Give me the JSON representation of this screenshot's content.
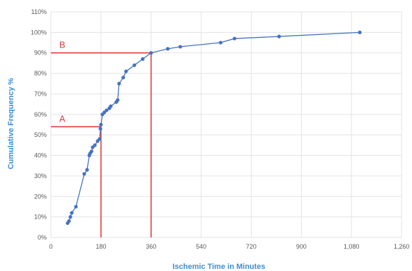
{
  "chart_data": {
    "type": "line",
    "title": "",
    "xlabel": "Ischemic Time in Minutes",
    "ylabel": "Cumulative Frequency %",
    "xlim": [
      0,
      1260
    ],
    "ylim": [
      0,
      110
    ],
    "x_ticks": [
      0,
      180,
      360,
      540,
      720,
      900,
      1080,
      1260
    ],
    "x_tick_labels": [
      "0",
      "180",
      "360",
      "540",
      "720",
      "900",
      "1,080",
      "1,260"
    ],
    "y_ticks": [
      0,
      10,
      20,
      30,
      40,
      50,
      60,
      70,
      80,
      90,
      100,
      110
    ],
    "y_tick_labels": [
      "0%",
      "10%",
      "20%",
      "30%",
      "40%",
      "50%",
      "60%",
      "70%",
      "80%",
      "90%",
      "100%",
      "110%"
    ],
    "grid": true,
    "legend": "none",
    "series": [
      {
        "x": [
          60,
          65,
          70,
          75,
          90,
          120,
          130,
          138,
          141,
          146,
          150,
          158,
          168,
          175,
          178,
          180,
          185,
          192,
          200,
          210,
          215,
          235,
          240,
          245,
          260,
          270,
          300,
          330,
          360,
          420,
          465,
          610,
          660,
          820,
          1110
        ],
        "y": [
          7,
          8,
          10,
          12,
          15,
          31,
          33,
          40,
          41,
          42,
          44,
          45,
          47,
          48,
          53,
          55,
          60,
          61,
          62,
          63,
          64,
          66,
          67,
          75,
          78,
          81,
          84,
          87,
          90,
          92,
          93,
          95,
          97,
          98,
          100
        ]
      }
    ],
    "colors": {
      "line": "#4472c4",
      "marker": "#4472c4",
      "annotation": "#e33b3b",
      "axis_title": "#3b8fd9",
      "grid": "#e3e3e3"
    },
    "annotations": [
      {
        "label": "A",
        "x": 180,
        "y": 54
      },
      {
        "label": "B",
        "x": 360,
        "y": 90
      }
    ]
  }
}
